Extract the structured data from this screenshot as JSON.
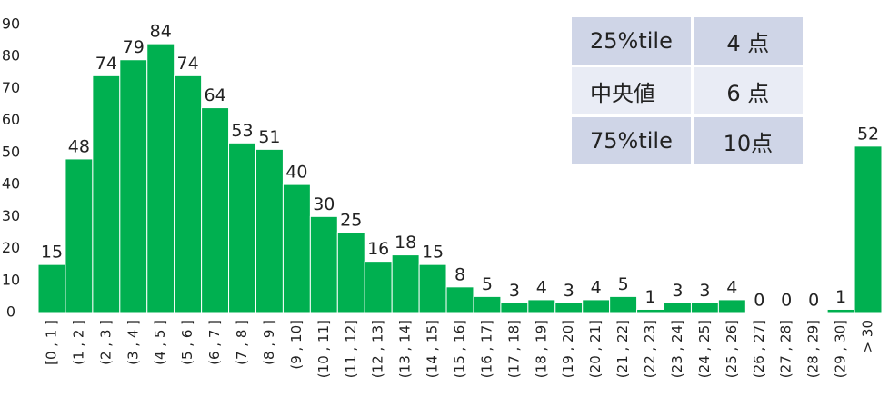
{
  "chart_data": {
    "type": "bar",
    "categories": [
      "[0 , 1 ]",
      "(1 , 2 ]",
      "(2 , 3 ]",
      "(3 , 4 ]",
      "(4 , 5 ]",
      "(5 , 6 ]",
      "(6 , 7 ]",
      "(7 , 8 ]",
      "(8 , 9 ]",
      "(9 , 10]",
      "(10 , 11]",
      "(11 , 12]",
      "(12 , 13]",
      "(13 , 14]",
      "(14 , 15]",
      "(15 , 16]",
      "(16 , 17]",
      "(17 , 18]",
      "(18 , 19]",
      "(19 , 20]",
      "(20 , 21]",
      "(21 , 22]",
      "(22 , 23]",
      "(23 , 24]",
      "(24 , 25]",
      "(25 , 26]",
      "(26 , 27]",
      "(27 , 28]",
      "(28 , 29]",
      "(29 , 30]",
      "> 30"
    ],
    "values": [
      15,
      48,
      74,
      79,
      84,
      74,
      64,
      53,
      51,
      40,
      30,
      25,
      16,
      18,
      15,
      8,
      5,
      3,
      4,
      3,
      4,
      5,
      1,
      3,
      3,
      4,
      0,
      0,
      0,
      1,
      52
    ],
    "color": "#00b050",
    "ylim": [
      0,
      90
    ],
    "yticks": [
      0,
      10,
      20,
      30,
      40,
      50,
      60,
      70,
      80,
      90
    ],
    "grid": false,
    "table": {
      "rows": [
        [
          "25%tile",
          "4 点"
        ],
        [
          "中央値",
          "6 点"
        ],
        [
          "75%tile",
          "10点"
        ]
      ]
    }
  }
}
